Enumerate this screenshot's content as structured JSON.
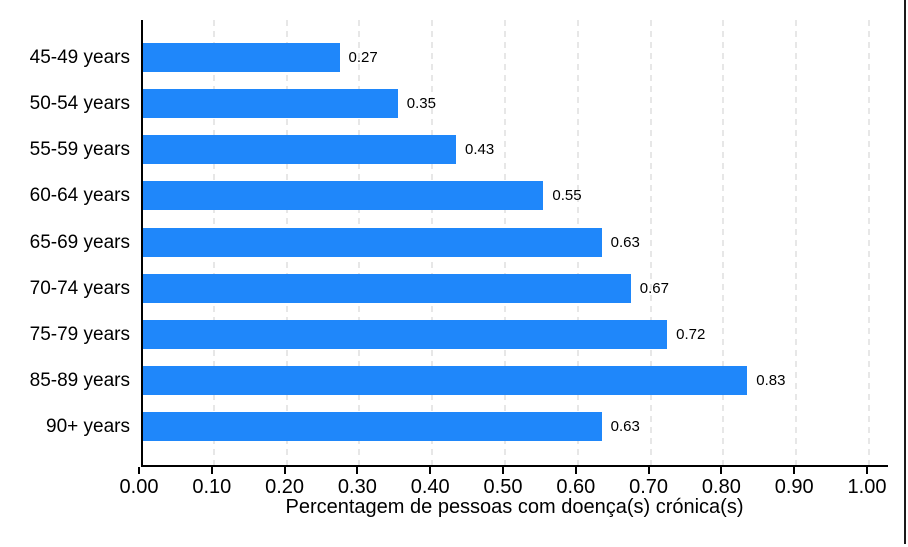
{
  "chart_data": {
    "type": "bar",
    "orientation": "horizontal",
    "title": "",
    "categories": [
      "45-49 years",
      "50-54 years",
      "55-59 years",
      "60-64 years",
      "65-69 years",
      "70-74 years",
      "75-79 years",
      "85-89 years",
      "90+ years"
    ],
    "values": [
      0.27,
      0.35,
      0.43,
      0.55,
      0.63,
      0.67,
      0.72,
      0.83,
      0.63
    ],
    "value_labels": [
      "0.27",
      "0.35",
      "0.43",
      "0.55",
      "0.63",
      "0.67",
      "0.72",
      "0.83",
      "0.63"
    ],
    "xlabel": "Percentagem de pessoas com doença(s) crónica(s)",
    "ylabel": "",
    "xlim": [
      0.0,
      1.0
    ],
    "x_ticks": [
      "0.00",
      "0.10",
      "0.20",
      "0.30",
      "0.40",
      "0.50",
      "0.60",
      "0.70",
      "0.80",
      "0.90",
      "1.00"
    ],
    "x_tick_values": [
      0.0,
      0.1,
      0.2,
      0.3,
      0.4,
      0.5,
      0.6,
      0.7,
      0.8,
      0.9,
      1.0
    ],
    "grid": "vertical-dashed",
    "legend": "none",
    "bar_color": "#1f87fa",
    "gridline_color": "#e7e7e7",
    "axis_color": "#000000",
    "background_color": "#ffffff"
  }
}
